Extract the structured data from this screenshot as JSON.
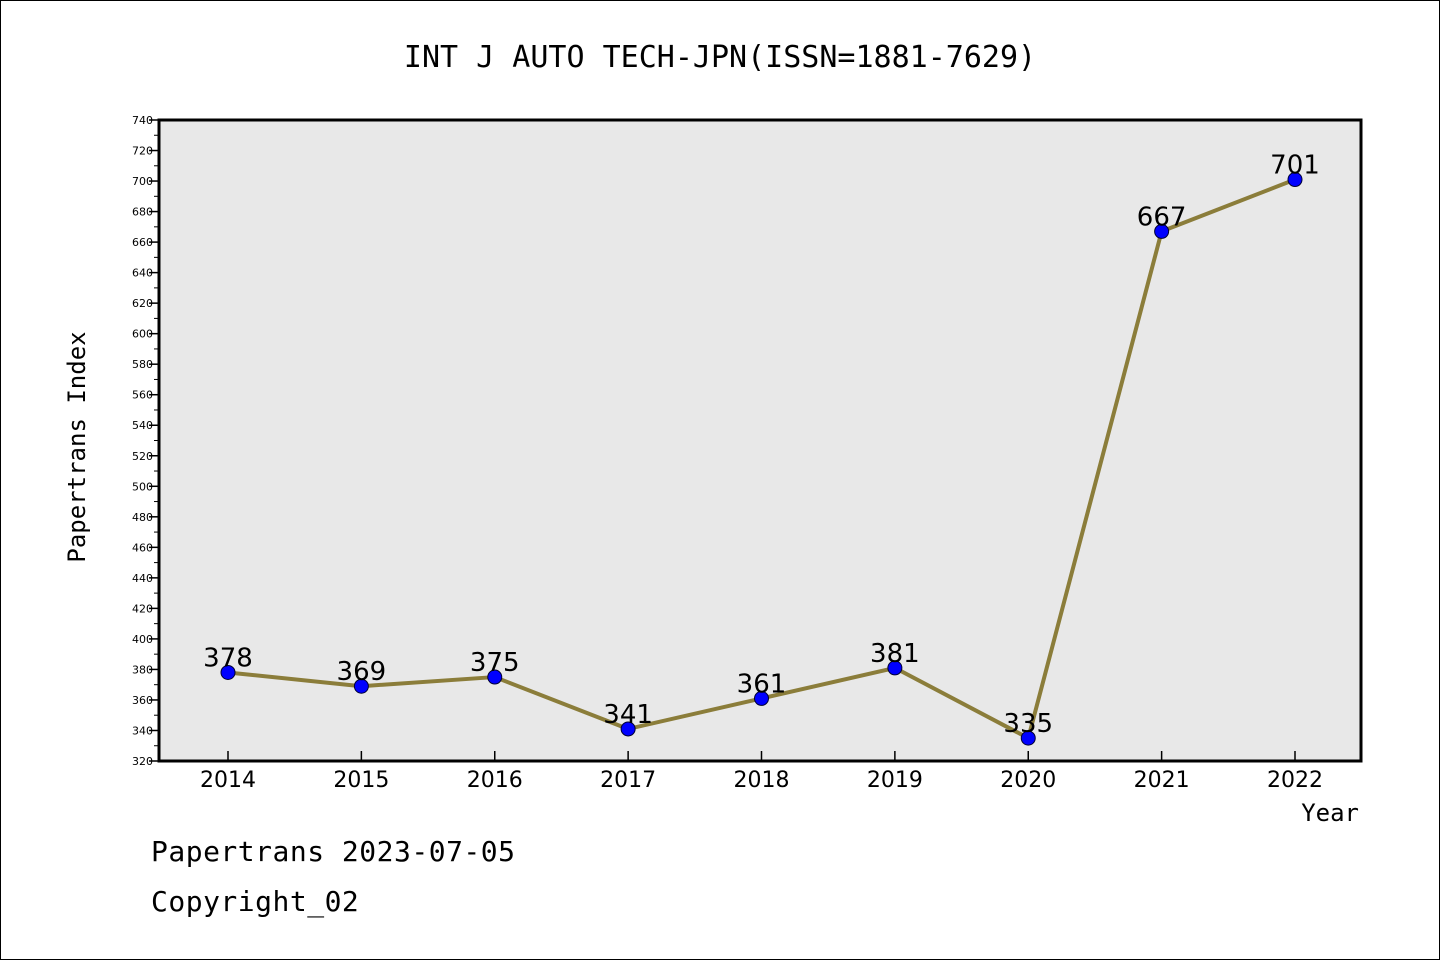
{
  "chart_data": {
    "type": "line",
    "title": "INT J AUTO TECH-JPN(ISSN=1881-7629)",
    "xlabel": "Year",
    "ylabel": "Papertrans Index",
    "categories": [
      "2014",
      "2015",
      "2016",
      "2017",
      "2018",
      "2019",
      "2020",
      "2021",
      "2022"
    ],
    "series": [
      {
        "values": [
          378,
          369,
          375,
          341,
          361,
          381,
          335,
          667,
          701
        ]
      }
    ],
    "data_labels": [
      "378",
      "369",
      "375",
      "341",
      "361",
      "381",
      "335",
      "667",
      "701"
    ],
    "ylim": [
      320,
      740
    ],
    "yticks": [
      "320",
      "340",
      "360",
      "380",
      "400",
      "420",
      "440",
      "460",
      "480",
      "500",
      "520",
      "540",
      "560",
      "580",
      "600",
      "620",
      "640",
      "660",
      "680",
      "700",
      "720",
      "740"
    ],
    "grid": false,
    "legend": "none",
    "colors": {
      "line": "#8b7d3a",
      "marker": "#0000ff",
      "plot_bg": "#e8e8e8"
    }
  },
  "footer": {
    "line1": "Papertrans 2023-07-05",
    "line2": "Copyright_02"
  }
}
